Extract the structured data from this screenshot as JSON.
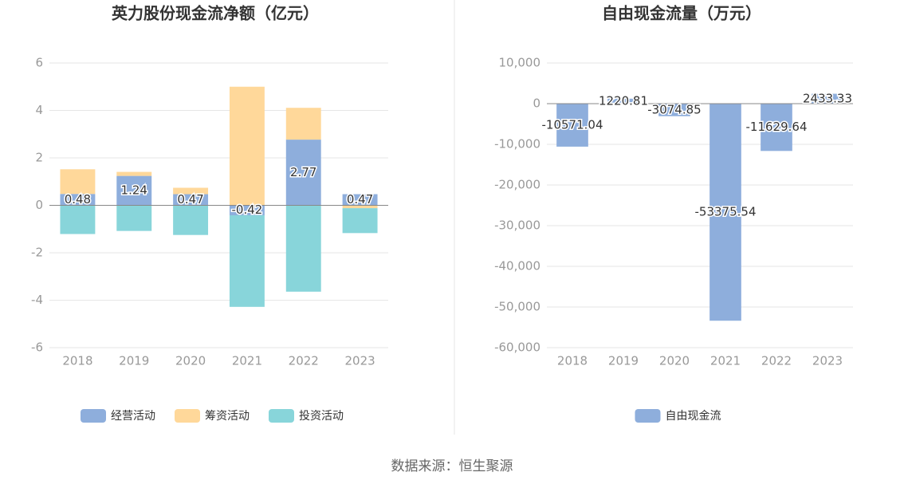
{
  "chart_data": [
    {
      "type": "bar",
      "stacked": true,
      "title": "英力股份现金流净额（亿元）",
      "categories": [
        "2018",
        "2019",
        "2020",
        "2021",
        "2022",
        "2023"
      ],
      "series": [
        {
          "name": "经营活动",
          "color": "#8eaedc",
          "values": [
            0.48,
            1.24,
            0.47,
            -0.42,
            2.77,
            0.47
          ],
          "labels": true
        },
        {
          "name": "筹资活动",
          "color": "#ffd89a",
          "values": [
            1.04,
            0.17,
            0.27,
            5.0,
            1.34,
            -0.12
          ]
        },
        {
          "name": "投资活动",
          "color": "#88d5da",
          "values": [
            -1.21,
            -1.08,
            -1.25,
            -3.86,
            -3.64,
            -1.05
          ]
        }
      ],
      "ylim": [
        -6,
        6
      ],
      "yticks": [
        -6,
        -4,
        -2,
        0,
        2,
        4,
        6
      ],
      "grid": true
    },
    {
      "type": "bar",
      "stacked": false,
      "title": "自由现金流量（万元）",
      "categories": [
        "2018",
        "2019",
        "2020",
        "2021",
        "2022",
        "2023"
      ],
      "series": [
        {
          "name": "自由现金流",
          "color": "#8eaedc",
          "values": [
            -10571.04,
            1220.81,
            -3074.85,
            -53375.54,
            -11629.64,
            2433.33
          ],
          "labels": true
        }
      ],
      "ylim": [
        -60000,
        10000
      ],
      "yticks": [
        {
          "value": -60000,
          "label": "-60,000"
        },
        {
          "value": -50000,
          "label": "-50,000"
        },
        {
          "value": -40000,
          "label": "-40,000"
        },
        {
          "value": -30000,
          "label": "-30,000"
        },
        {
          "value": -20000,
          "label": "-20,000"
        },
        {
          "value": -10000,
          "label": "-10,000"
        },
        0,
        {
          "value": 10000,
          "label": "10,000"
        }
      ],
      "grid": true
    }
  ],
  "source": "数据来源：恒生聚源"
}
